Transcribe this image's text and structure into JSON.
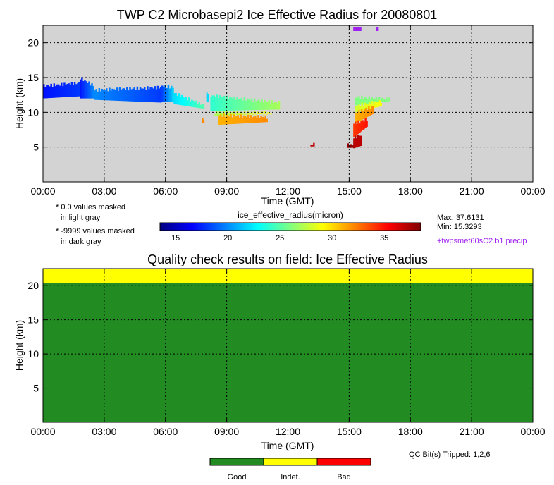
{
  "chart_data": [
    {
      "type": "heatmap",
      "title": "TWP C2 Microbasepi2 Ice Effective Radius for 20080801",
      "xlabel": "Time (GMT)",
      "ylabel": "Height (km)",
      "x_ticks": [
        "00:00",
        "03:00",
        "06:00",
        "09:00",
        "12:00",
        "15:00",
        "18:00",
        "21:00",
        "00:00"
      ],
      "y_ticks": [
        "5",
        "10",
        "15",
        "20"
      ],
      "xlim_hours": [
        0,
        24
      ],
      "ylim_km": [
        0,
        22.5
      ],
      "grid": true,
      "background_color": "#d3d3d3",
      "notes": [
        "* 0.0 values masked",
        "in light gray",
        "* -9999 values masked",
        "in dark gray"
      ],
      "colorbar": {
        "label": "ice_effective_radius(micron)",
        "ticks": [
          "15",
          "20",
          "25",
          "30",
          "35"
        ],
        "range": [
          13.5,
          38.5
        ],
        "colors": [
          "#00007f",
          "#0000ff",
          "#0080ff",
          "#00ffff",
          "#80ff80",
          "#ffff00",
          "#ff8000",
          "#ff0000",
          "#7f0000"
        ]
      },
      "stats": {
        "max": "Max: 37.6131",
        "min": "Min: 15.3293"
      },
      "precip_label": "+twpsmet60sC2.b1 precip",
      "precip_color": "#a020f0",
      "precip_marks_hours": [
        [
          15.2,
          15.6
        ],
        [
          16.3,
          16.45
        ]
      ],
      "regions": [
        {
          "t": [
            0.0,
            1.8
          ],
          "base_km": [
            12.0,
            12.3
          ],
          "top_km": [
            13.8,
            14.2
          ],
          "value": [
            17,
            18
          ]
        },
        {
          "t": [
            1.8,
            2.5
          ],
          "base_km": [
            12.0,
            12.0
          ],
          "top_km": [
            15.0,
            13.8
          ],
          "value": [
            17,
            20
          ]
        },
        {
          "t": [
            2.5,
            5.8
          ],
          "base_km": [
            11.8,
            11.4
          ],
          "top_km": [
            13.2,
            13.6
          ],
          "value": [
            20,
            18
          ]
        },
        {
          "t": [
            5.8,
            6.4
          ],
          "base_km": [
            11.5,
            11.5
          ],
          "top_km": [
            13.8,
            13.6
          ],
          "value": [
            18,
            22
          ]
        },
        {
          "t": [
            6.4,
            7.9
          ],
          "base_km": [
            11.2,
            10.5
          ],
          "top_km": [
            12.8,
            11.0
          ],
          "value": [
            22,
            25
          ]
        },
        {
          "t": [
            8.0,
            8.1
          ],
          "base_km": [
            11.5,
            11.5
          ],
          "top_km": [
            12.8,
            12.8
          ],
          "value": [
            22,
            22
          ]
        },
        {
          "t": [
            8.2,
            11.6
          ],
          "base_km": [
            10.2,
            10.4
          ],
          "top_km": [
            12.4,
            11.4
          ],
          "value": [
            24,
            27
          ]
        },
        {
          "t": [
            8.4,
            11.2
          ],
          "base_km": [
            9.5,
            9.8
          ],
          "top_km": [
            10.0,
            9.9
          ],
          "value": [
            27,
            29
          ]
        },
        {
          "t": [
            8.6,
            11.0
          ],
          "base_km": [
            8.2,
            8.6
          ],
          "top_km": [
            9.6,
            9.3
          ],
          "value": [
            31,
            32
          ]
        },
        {
          "t": [
            7.8,
            7.9
          ],
          "base_km": [
            8.5,
            8.5
          ],
          "top_km": [
            8.9,
            8.9
          ],
          "value": [
            32,
            32
          ]
        },
        {
          "t": [
            15.3,
            17.0
          ],
          "base_km": [
            11.0,
            11.6
          ],
          "top_km": [
            12.2,
            11.9
          ],
          "value": [
            26,
            26
          ]
        },
        {
          "t": [
            15.3,
            16.6
          ],
          "base_km": [
            10.0,
            10.9
          ],
          "top_km": [
            11.0,
            11.6
          ],
          "value": [
            28,
            29
          ]
        },
        {
          "t": [
            15.3,
            16.2
          ],
          "base_km": [
            8.4,
            9.8
          ],
          "top_km": [
            10.0,
            10.9
          ],
          "value": [
            31,
            32
          ]
        },
        {
          "t": [
            15.2,
            15.9
          ],
          "base_km": [
            6.3,
            8.0
          ],
          "top_km": [
            8.4,
            9.0
          ],
          "value": [
            34,
            35
          ]
        },
        {
          "t": [
            15.2,
            15.6
          ],
          "base_km": [
            4.8,
            5.2
          ],
          "top_km": [
            6.3,
            6.8
          ],
          "value": [
            37,
            37
          ]
        },
        {
          "t": [
            14.9,
            15.2
          ],
          "base_km": [
            4.9,
            4.9
          ],
          "top_km": [
            5.3,
            5.3
          ],
          "value": [
            38,
            38
          ]
        },
        {
          "t": [
            13.1,
            13.3
          ],
          "base_km": [
            5.1,
            5.1
          ],
          "top_km": [
            5.4,
            5.4
          ],
          "value": [
            37,
            37
          ]
        }
      ]
    },
    {
      "type": "heatmap",
      "title": "Quality check results on field: Ice Effective Radius",
      "xlabel": "Time (GMT)",
      "ylabel": "Height (km)",
      "x_ticks": [
        "00:00",
        "03:00",
        "06:00",
        "09:00",
        "12:00",
        "15:00",
        "18:00",
        "21:00",
        "00:00"
      ],
      "y_ticks": [
        "5",
        "10",
        "15",
        "20"
      ],
      "xlim_hours": [
        0,
        24
      ],
      "ylim_km": [
        0,
        22.5
      ],
      "grid": true,
      "bands": [
        {
          "from_km": 0,
          "to_km": 20.4,
          "status": "Good",
          "color": "#228b22"
        },
        {
          "from_km": 20.4,
          "to_km": 22.5,
          "status": "Indet.",
          "color": "#ffff00"
        }
      ],
      "qc_bits": "QC Bit(s) Tripped: 1,2,6",
      "legend": [
        {
          "label": "Good",
          "color": "#228b22"
        },
        {
          "label": "Indet.",
          "color": "#ffff00"
        },
        {
          "label": "Bad",
          "color": "#ff0000"
        }
      ]
    }
  ]
}
